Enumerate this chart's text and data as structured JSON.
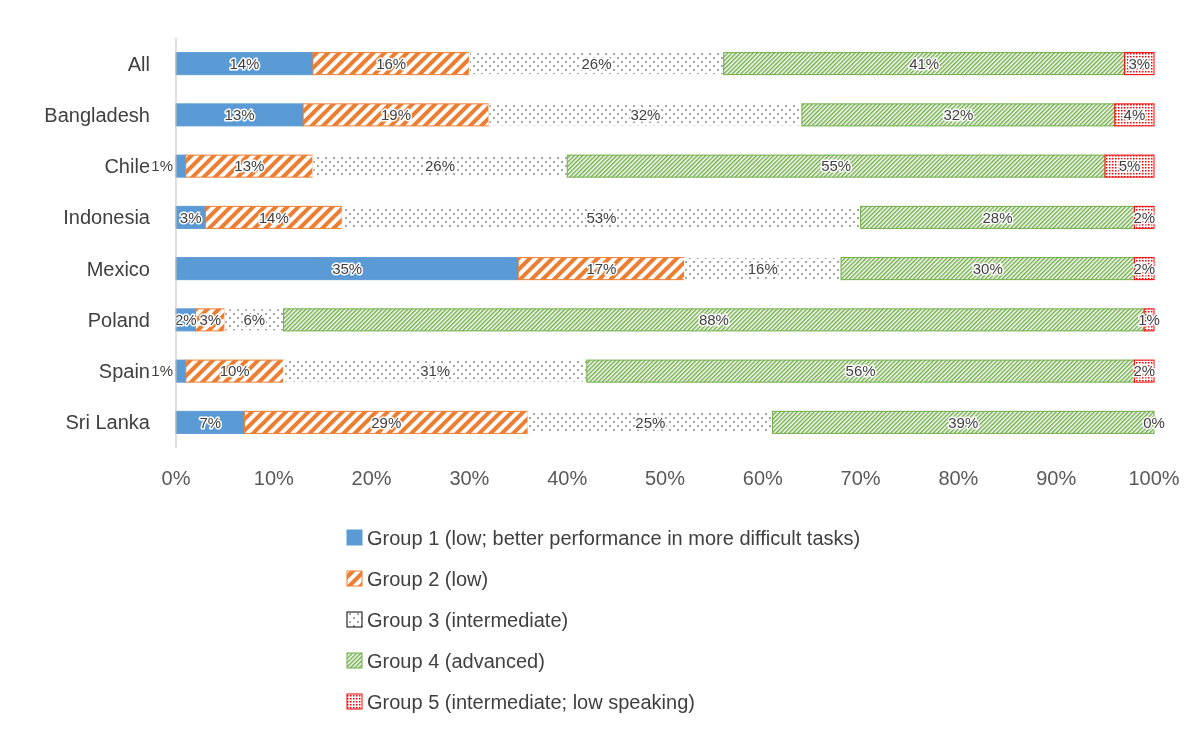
{
  "chart_data": {
    "type": "bar",
    "orientation": "horizontal",
    "stacked": true,
    "legend": "bottom",
    "grid": false,
    "categories": [
      "All",
      "Bangladesh",
      "Chile",
      "Indonesia",
      "Mexico",
      "Poland",
      "Spain",
      "Sri Lanka"
    ],
    "xlim": [
      0,
      100
    ],
    "xticks": [
      {
        "value": 0,
        "label": "0%"
      },
      {
        "value": 10,
        "label": "10%"
      },
      {
        "value": 20,
        "label": "20%"
      },
      {
        "value": 30,
        "label": "30%"
      },
      {
        "value": 40,
        "label": "40%"
      },
      {
        "value": 50,
        "label": "50%"
      },
      {
        "value": 60,
        "label": "60%"
      },
      {
        "value": 70,
        "label": "70%"
      },
      {
        "value": 80,
        "label": "80%"
      },
      {
        "value": 90,
        "label": "90%"
      },
      {
        "value": 100,
        "label": "100%"
      }
    ],
    "series": [
      {
        "name": "Group 1 (low; better performance in more difficult tasks)",
        "color": "#5b9bd5",
        "values": [
          14,
          13,
          1,
          3,
          35,
          2,
          1,
          7
        ],
        "value_labels": [
          "14%",
          "13%",
          "1%",
          "3%",
          "35%",
          "2%",
          "1%",
          "7%"
        ]
      },
      {
        "name": "Group 2 (low)",
        "color": "#ed7d31",
        "values": [
          16,
          19,
          13,
          14,
          17,
          3,
          10,
          29
        ],
        "value_labels": [
          "16%",
          "19%",
          "13%",
          "14%",
          "17%",
          "3%",
          "10%",
          "29%"
        ]
      },
      {
        "name": "Group 3 (intermediate)",
        "color": "#ffffff",
        "values": [
          26,
          32,
          26,
          53,
          16,
          6,
          31,
          25
        ],
        "value_labels": [
          "26%",
          "32%",
          "26%",
          "53%",
          "16%",
          "6%",
          "31%",
          "25%"
        ]
      },
      {
        "name": "Group 4 (advanced)",
        "color": "#70ad47",
        "values": [
          41,
          32,
          55,
          28,
          30,
          88,
          56,
          39
        ],
        "value_labels": [
          "41%",
          "32%",
          "55%",
          "28%",
          "30%",
          "88%",
          "56%",
          "39%"
        ]
      },
      {
        "name": "Group 5 (intermediate; low speaking)",
        "color": "#ff0000",
        "values": [
          3,
          4,
          5,
          2,
          2,
          1,
          2,
          0
        ],
        "value_labels": [
          "3%",
          "4%",
          "5%",
          "2%",
          "2%",
          "1%",
          "2%",
          "0%"
        ]
      }
    ]
  }
}
